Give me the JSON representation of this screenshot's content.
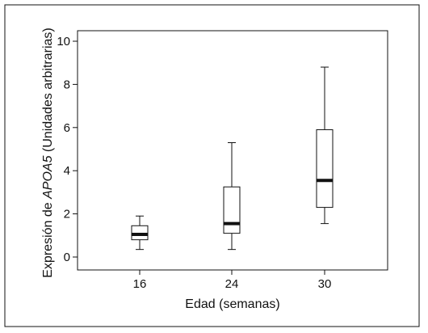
{
  "chart_data": {
    "type": "box",
    "title": "",
    "xlabel": "Edad (semanas)",
    "ylabel": {
      "prefix": "Expresión de ",
      "gene": "APOA5",
      "suffix": " (Unidades arbitrarias)"
    },
    "ylim": [
      0,
      10
    ],
    "yticks": [
      "0",
      "2",
      "4",
      "6",
      "8",
      "10"
    ],
    "grid": false,
    "legend": "none",
    "categories": [
      "16",
      "24",
      "30"
    ],
    "boxes": [
      {
        "label": "16",
        "whisker_low": 0.35,
        "q1": 0.8,
        "median": 1.05,
        "q3": 1.45,
        "whisker_high": 1.9
      },
      {
        "label": "24",
        "whisker_low": 0.35,
        "q1": 1.1,
        "median": 1.55,
        "q3": 3.25,
        "whisker_high": 5.3
      },
      {
        "label": "30",
        "whisker_low": 1.55,
        "q1": 2.3,
        "median": 3.55,
        "q3": 5.9,
        "whisker_high": 8.8
      }
    ]
  }
}
